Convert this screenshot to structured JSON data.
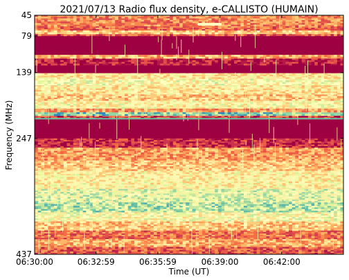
{
  "chart_data": {
    "type": "heatmap",
    "title": "2021/07/13  Radio flux density, e-CALLISTO (HUMAIN)",
    "xlabel": "Time (UT)",
    "ylabel": "Frequency (MHz)",
    "x_ticks": [
      "06:30:00",
      "06:32:59",
      "06:35:59",
      "06:39:00",
      "06:42:00"
    ],
    "x_tick_seconds": [
      0,
      179,
      359,
      540,
      720
    ],
    "x_range_seconds": [
      0,
      900
    ],
    "y_ticks": [
      "45",
      "79",
      "139",
      "247",
      "437"
    ],
    "y_tick_values": [
      45,
      79,
      139,
      247,
      437
    ],
    "y_range": [
      45,
      437
    ],
    "y_axis_inverted": true,
    "colormap": "Spectral_r",
    "colors": {
      "low": "#9e0142",
      "mid": "#fee08b",
      "high": "#66c2a5"
    },
    "bands": [
      {
        "from": 45,
        "to": 63,
        "level": 0.3
      },
      {
        "from": 63,
        "to": 70,
        "level": 0.25
      },
      {
        "from": 70,
        "to": 76,
        "level": 0.45
      },
      {
        "from": 76,
        "to": 79,
        "level": 0.2
      },
      {
        "from": 79,
        "to": 84,
        "level": 0.0
      },
      {
        "from": 84,
        "to": 110,
        "level": 0.0
      },
      {
        "from": 110,
        "to": 116,
        "level": 0.4
      },
      {
        "from": 116,
        "to": 127,
        "level": 0.05
      },
      {
        "from": 127,
        "to": 140,
        "level": 0.0
      },
      {
        "from": 140,
        "to": 149,
        "level": 0.55
      },
      {
        "from": 149,
        "to": 160,
        "level": 0.62
      },
      {
        "from": 160,
        "to": 175,
        "level": 0.55
      },
      {
        "from": 175,
        "to": 185,
        "level": 0.45
      },
      {
        "from": 185,
        "to": 198,
        "level": 0.6
      },
      {
        "from": 198,
        "to": 204,
        "level": 0.35
      },
      {
        "from": 204,
        "to": 210,
        "level": 0.85
      },
      {
        "from": 210,
        "to": 214,
        "level": 0.15
      },
      {
        "from": 214,
        "to": 247,
        "level": 0.0
      },
      {
        "from": 247,
        "to": 262,
        "level": 0.1
      },
      {
        "from": 262,
        "to": 283,
        "level": 0.35
      },
      {
        "from": 283,
        "to": 300,
        "level": 0.45
      },
      {
        "from": 300,
        "to": 330,
        "level": 0.58
      },
      {
        "from": 330,
        "to": 352,
        "level": 0.7
      },
      {
        "from": 352,
        "to": 368,
        "level": 0.78
      },
      {
        "from": 368,
        "to": 383,
        "level": 0.62
      },
      {
        "from": 383,
        "to": 398,
        "level": 0.45
      },
      {
        "from": 398,
        "to": 412,
        "level": 0.25
      },
      {
        "from": 412,
        "to": 425,
        "level": 0.4
      },
      {
        "from": 425,
        "to": 437,
        "level": 0.2
      }
    ]
  }
}
